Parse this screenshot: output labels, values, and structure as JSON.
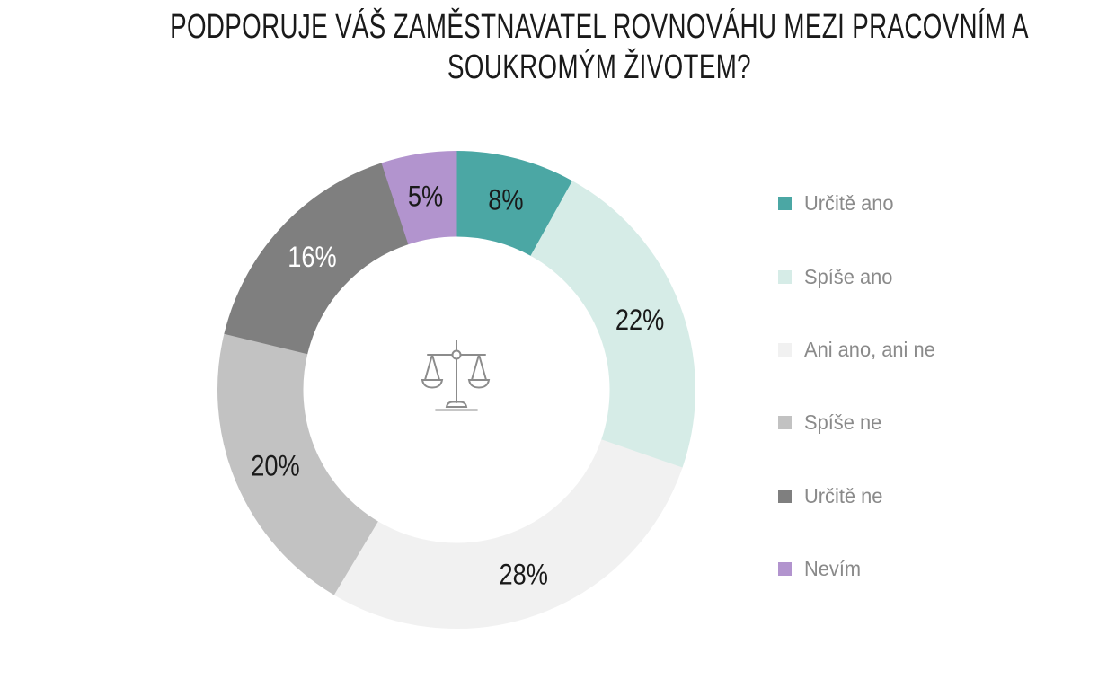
{
  "page": {
    "background": "#ffffff"
  },
  "chart_data": {
    "type": "pie",
    "subtype": "donut",
    "title": "PODPORUJE VÁŠ ZAMĚSTNAVATEL ROVNOVÁHU MEZI PRACOVNÍM A SOUKROMÝM ŽIVOTEM?",
    "title_lines": [
      "PODPORUJE VÁŠ ZAMĚSTNAVATEL ROVNOVÁHU MEZI PRACOVNÍM A",
      "SOUKROMÝM ŽIVOTEM?"
    ],
    "units": "%",
    "start_angle_deg": 0,
    "direction": "clockwise",
    "legend_position": "right",
    "center_icon": "balance-scale",
    "icon_color": "#8c8c8c",
    "segments": [
      {
        "label": "Určitě ano",
        "value": 8,
        "display": "8%",
        "color": "#4BA7A4",
        "label_color": "#1a1a1a"
      },
      {
        "label": "Spíše ano",
        "value": 22,
        "display": "22%",
        "color": "#D6ECE7",
        "label_color": "#1a1a1a"
      },
      {
        "label": "Ani ano, ani ne",
        "value": 28,
        "display": "28%",
        "color": "#F1F1F1",
        "label_color": "#1a1a1a"
      },
      {
        "label": "Spíše ne",
        "value": 20,
        "display": "20%",
        "color": "#C2C2C2",
        "label_color": "#1a1a1a"
      },
      {
        "label": "Určitě ne",
        "value": 16,
        "display": "16%",
        "color": "#7F7F7F",
        "label_color": "#ffffff"
      },
      {
        "label": "Nevím",
        "value": 5,
        "display": "5%",
        "color": "#B294CE",
        "label_color": "#1a1a1a"
      }
    ]
  }
}
